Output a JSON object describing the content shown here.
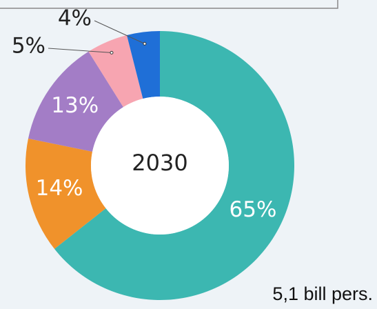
{
  "chart_data": {
    "type": "pie",
    "donut": true,
    "values": [
      65,
      14,
      13,
      5,
      4
    ],
    "value_labels": [
      "65%",
      "14%",
      "13%",
      "5%",
      "4%"
    ],
    "colors": [
      "#3cb7b1",
      "#f0922b",
      "#a37dc6",
      "#f7a5b1",
      "#1f6fd7"
    ],
    "center_label": "2030",
    "note": "5,1 bill pers."
  }
}
